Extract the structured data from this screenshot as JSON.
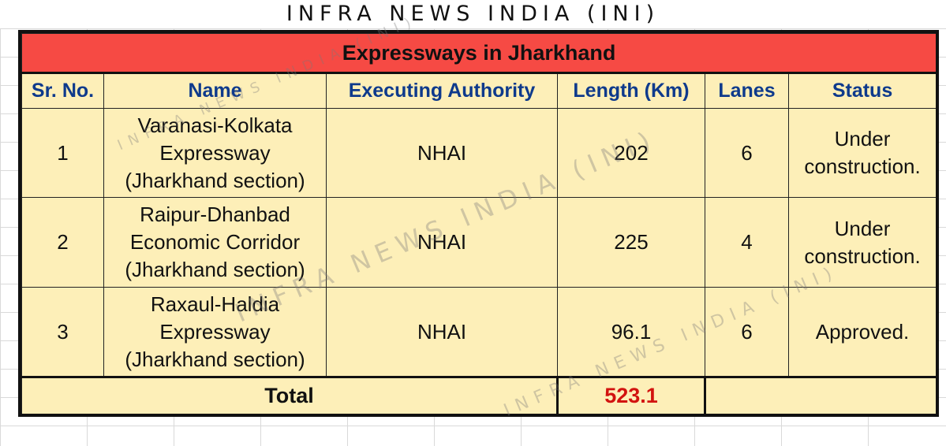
{
  "header": {
    "title": "INFRA NEWS INDIA (INI)"
  },
  "table": {
    "title": "Expressways in Jharkhand",
    "columns": [
      "Sr. No.",
      "Name",
      "Executing Authority",
      "Length (Km)",
      "Lanes",
      "Status"
    ],
    "rows": [
      {
        "sr_no": "1",
        "name_lines": [
          "Varanasi-Kolkata",
          "Expressway",
          "(Jharkhand section)"
        ],
        "authority": "NHAI",
        "length": "202",
        "lanes": "6",
        "status_lines": [
          "Under",
          "construction."
        ]
      },
      {
        "sr_no": "2",
        "name_lines": [
          "Raipur-Dhanbad",
          "Economic Corridor",
          "(Jharkhand section)"
        ],
        "authority": "NHAI",
        "length": "225",
        "lanes": "4",
        "status_lines": [
          "Under",
          "construction."
        ]
      },
      {
        "sr_no": "3",
        "name_lines": [
          "Raxaul-Haldia",
          "Expressway",
          "(Jharkhand section)"
        ],
        "authority": "NHAI",
        "length": "96.1",
        "lanes": "6",
        "status_lines": [
          "Approved."
        ]
      }
    ],
    "total": {
      "label": "Total",
      "length": "523.1"
    }
  },
  "watermark": {
    "text": "INFRA NEWS INDIA (INI)"
  },
  "colors": {
    "title_band": "#f64a44",
    "cell_background": "#fdefb8",
    "header_text": "#0e3a8c",
    "total_value": "#d2130f"
  }
}
